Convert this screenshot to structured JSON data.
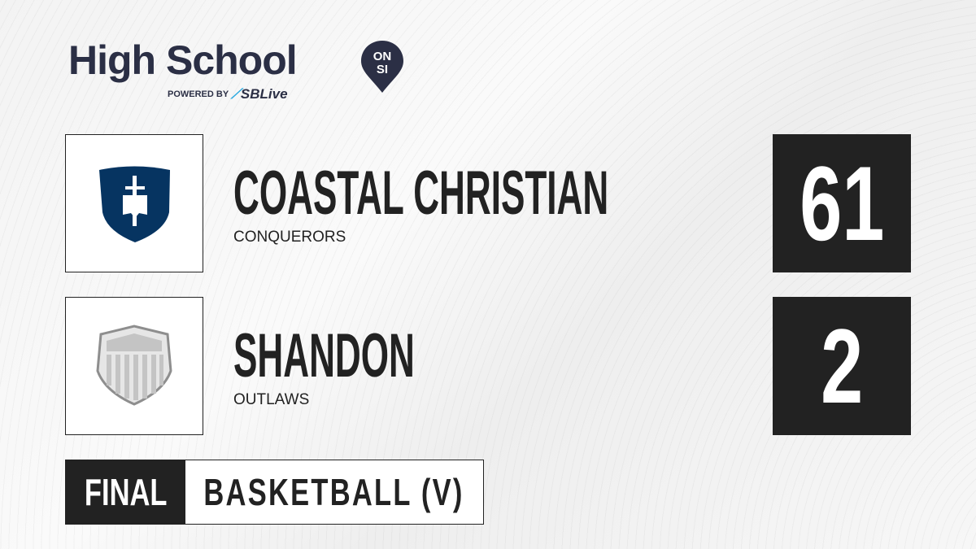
{
  "brand": {
    "title": "High School",
    "badge_top": "ON",
    "badge_bottom": "SI",
    "powered_by": "POWERED BY",
    "partner": "SBLive",
    "color": "#2b2f45",
    "partner_accent": "#2aa9e0"
  },
  "teams": [
    {
      "name": "COASTAL CHRISTIAN",
      "mascot": "CONQUERORS",
      "score": "61",
      "logo": "navy-shield-sword-icon",
      "logo_color": "#063461"
    },
    {
      "name": "SHANDON",
      "mascot": "OUTLAWS",
      "score": "2",
      "logo": "gray-default-shield-icon",
      "logo_color": "#c4c4c4"
    }
  ],
  "game": {
    "status": "FINAL",
    "sport": "BASKETBALL (V)"
  }
}
